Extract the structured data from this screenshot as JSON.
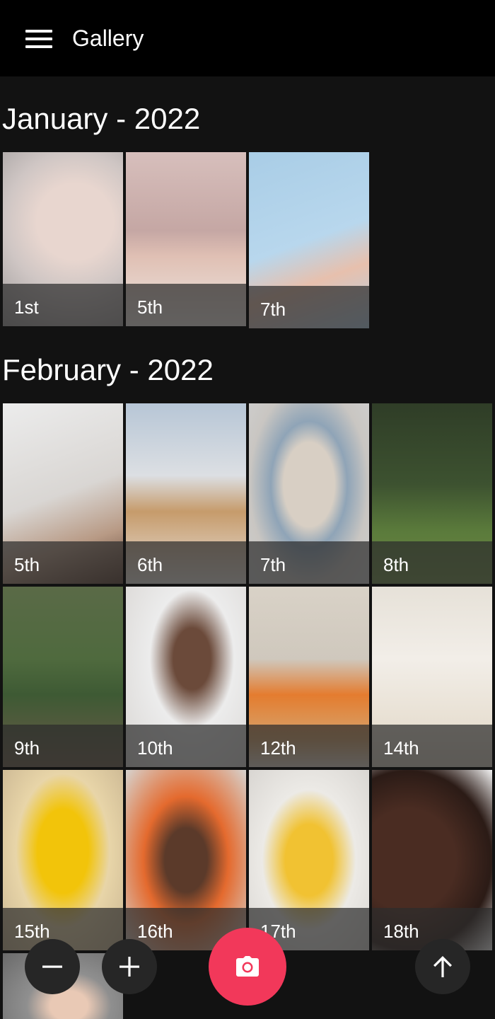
{
  "app": {
    "title": "Gallery"
  },
  "sections": [
    {
      "title": "January - 2022",
      "items": [
        {
          "label": "1st"
        },
        {
          "label": "5th"
        },
        {
          "label": "7th"
        }
      ]
    },
    {
      "title": "February - 2022",
      "items": [
        {
          "label": "5th"
        },
        {
          "label": "6th"
        },
        {
          "label": "7th"
        },
        {
          "label": "8th"
        },
        {
          "label": "9th"
        },
        {
          "label": "10th"
        },
        {
          "label": "12th"
        },
        {
          "label": "14th"
        },
        {
          "label": "15th"
        },
        {
          "label": "16th"
        },
        {
          "label": "17th"
        },
        {
          "label": "18th"
        }
      ]
    }
  ],
  "icons": {
    "menu": "menu-icon",
    "zoom_out": "minus-icon",
    "zoom_in": "plus-icon",
    "camera": "camera-icon",
    "scroll_top": "arrow-up-icon"
  },
  "colors": {
    "background": "#121212",
    "appbar": "#000000",
    "camera_fab": "#f2385a",
    "small_fab": "#262626"
  }
}
